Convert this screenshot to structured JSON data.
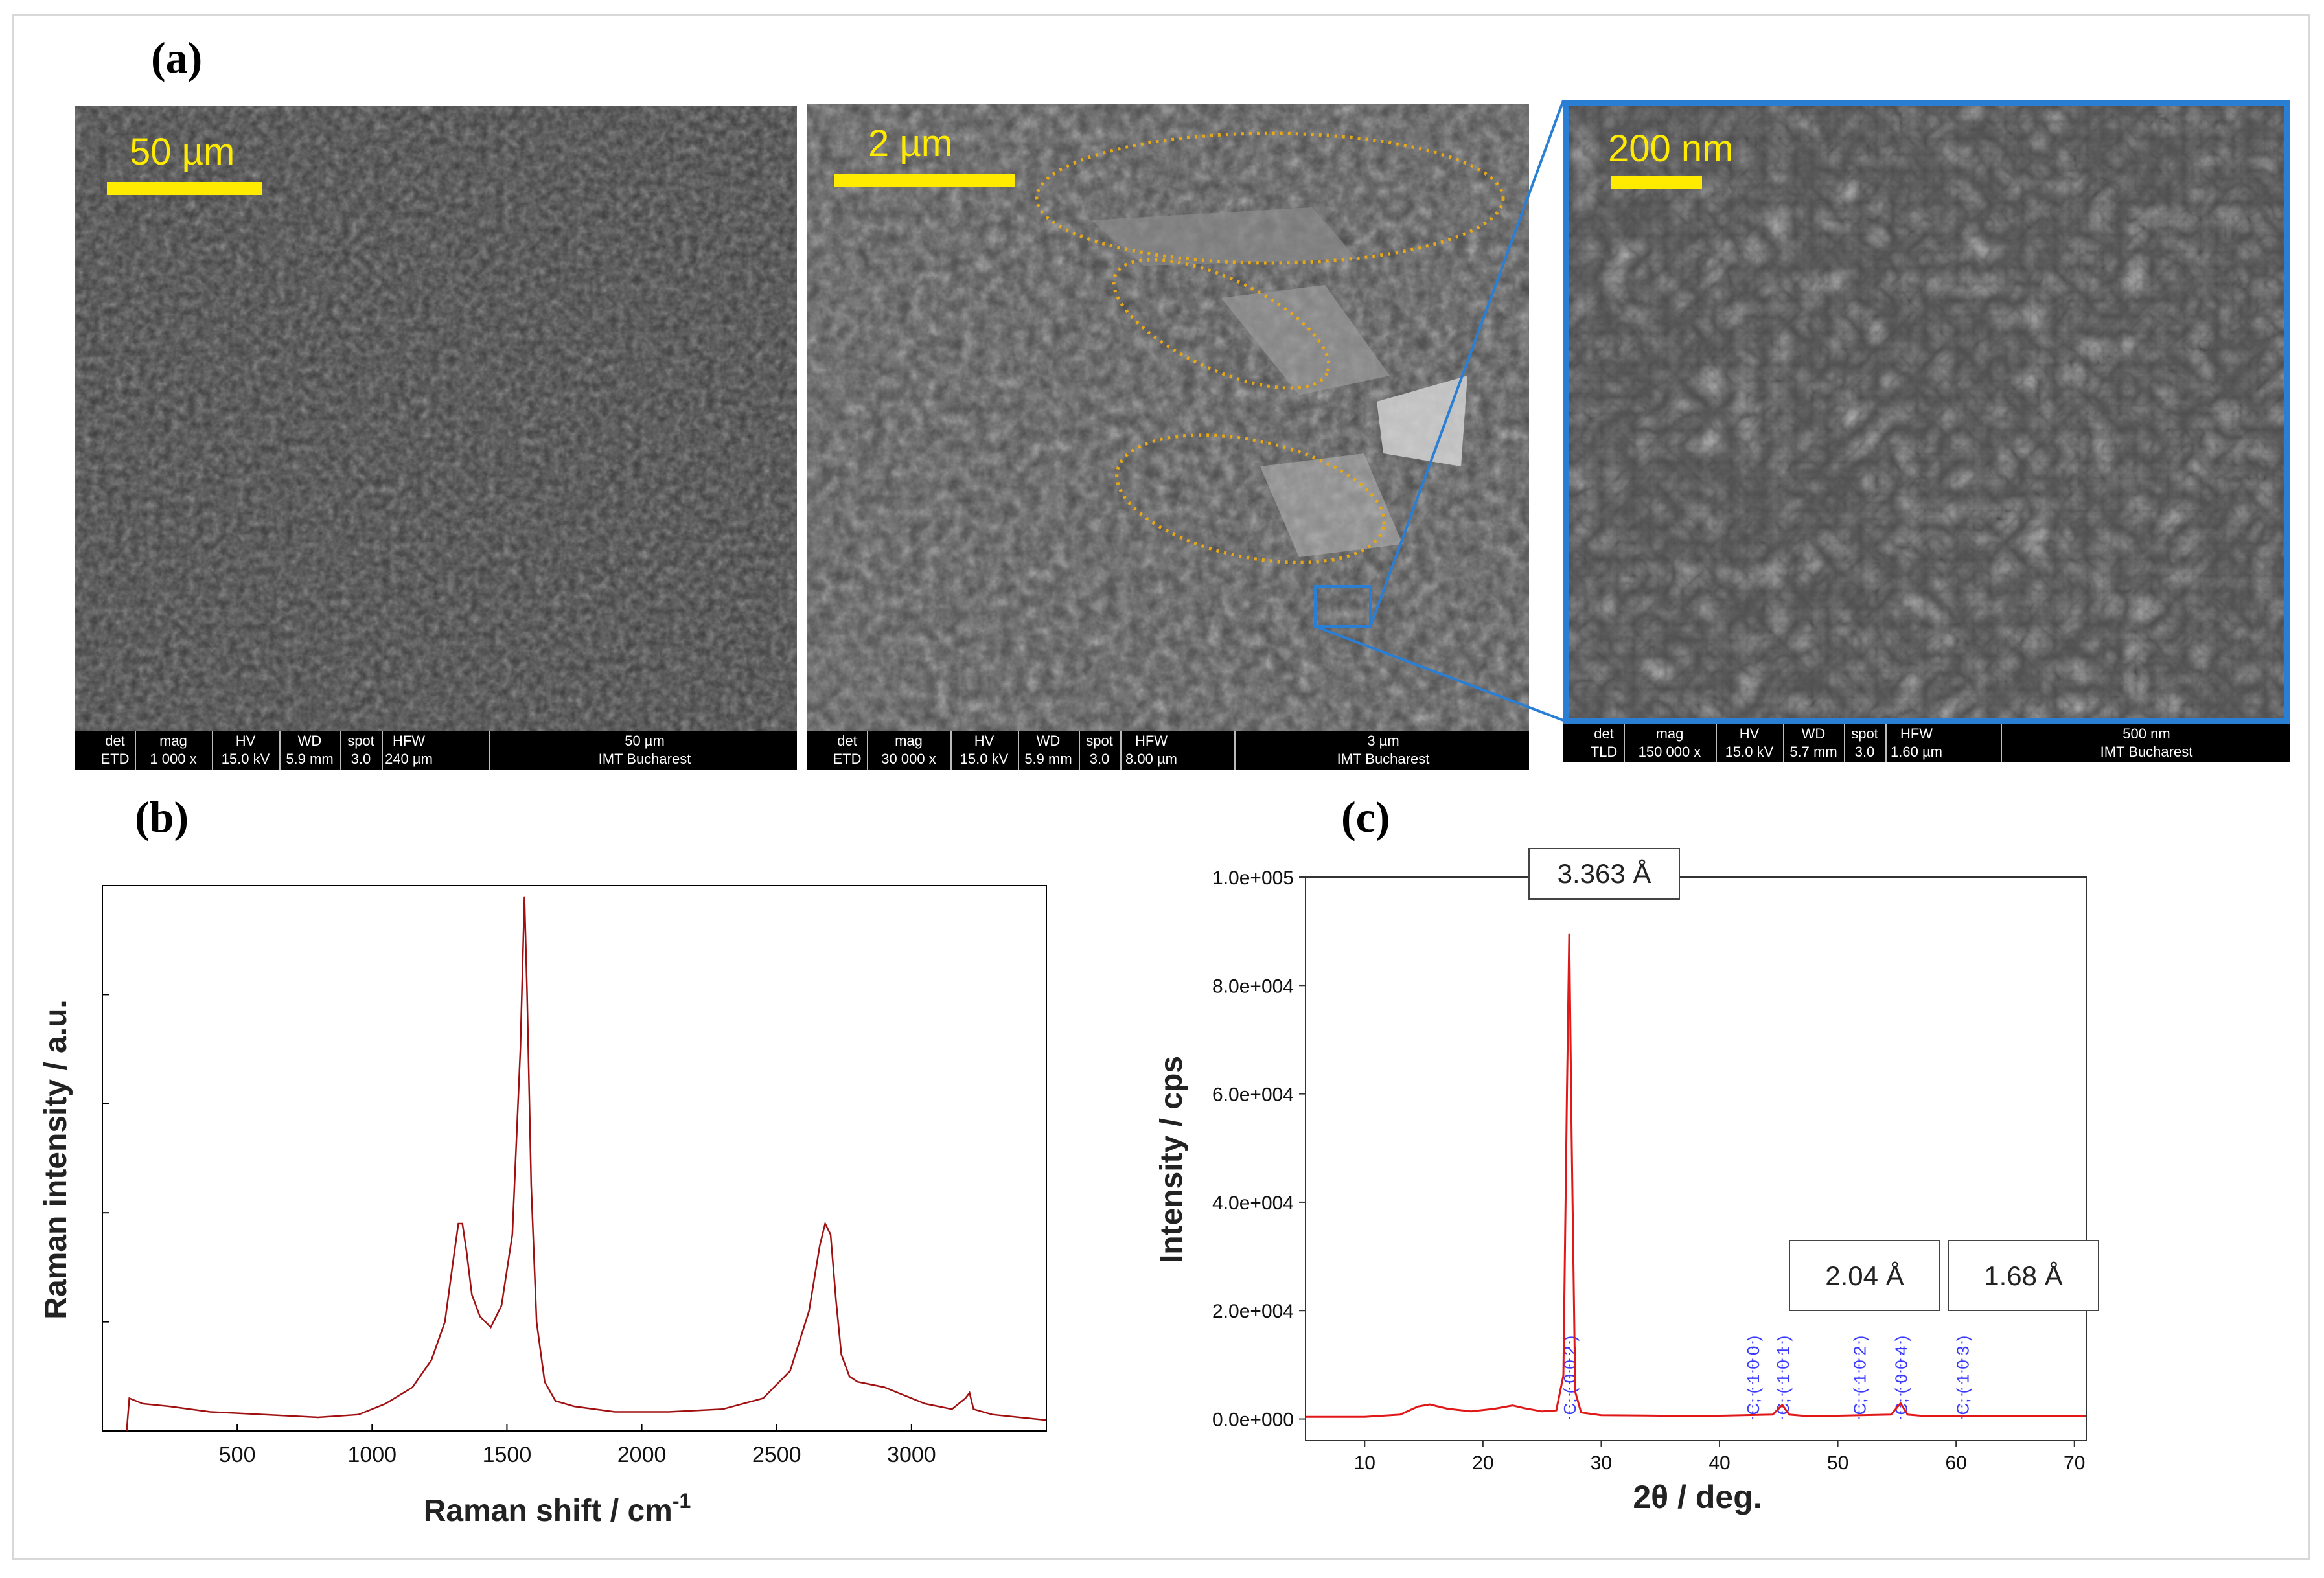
{
  "figure": {
    "panel_labels": {
      "a": "(a)",
      "b": "(b)",
      "c": "(c)"
    }
  },
  "sem_images": [
    {
      "scale_label": "50 µm",
      "info": {
        "det_header": "det",
        "det": "ETD",
        "mag_header": "mag",
        "mag": "1 000 x",
        "hv_header": "HV",
        "hv": "15.0 kV",
        "wd_header": "WD",
        "wd": "5.9 mm",
        "spot_header": "spot",
        "spot": "3.0",
        "hfw_header": "HFW",
        "hfw": "240 µm",
        "bar_label": "50 µm",
        "institution": "IMT Bucharest"
      }
    },
    {
      "scale_label": "2 µm",
      "info": {
        "det_header": "det",
        "det": "ETD",
        "mag_header": "mag",
        "mag": "30 000 x",
        "hv_header": "HV",
        "hv": "15.0 kV",
        "wd_header": "WD",
        "wd": "5.9 mm",
        "spot_header": "spot",
        "spot": "3.0",
        "hfw_header": "HFW",
        "hfw": "8.00 µm",
        "bar_label": "3 µm",
        "institution": "IMT Bucharest"
      }
    },
    {
      "scale_label": "200 nm",
      "info": {
        "det_header": "det",
        "det": "TLD",
        "mag_header": "mag",
        "mag": "150 000 x",
        "hv_header": "HV",
        "hv": "15.0 kV",
        "wd_header": "WD",
        "wd": "5.7 mm",
        "spot_header": "spot",
        "spot": "3.0",
        "hfw_header": "HFW",
        "hfw": "1.60 µm",
        "bar_label": "500 nm",
        "institution": "IMT Bucharest"
      }
    }
  ],
  "colors": {
    "raman_line": "#a01010",
    "xrd_line": "#e01818",
    "peak_labels": "#3a3aff",
    "scale_bar": "#ffeb00",
    "highlight_ellipse": "#e6a817",
    "zoom_box": "#2a7fd4"
  },
  "chart_data": [
    {
      "type": "line",
      "title": "",
      "xlabel": "Raman shift / cm",
      "xlabel_sup": "-1",
      "ylabel": "Raman intensity / a.u.",
      "xlim": [
        0,
        3500
      ],
      "ylim": [
        0,
        100
      ],
      "xticks": [
        500,
        1000,
        1500,
        2000,
        2500,
        3000
      ],
      "xtick_labels": [
        "500",
        "1000",
        "1500",
        "2000",
        "2500",
        "3000"
      ],
      "y_tick_labels_shown": false,
      "series": [
        {
          "x": [
            90,
            100,
            150,
            250,
            400,
            600,
            800,
            950,
            1050,
            1150,
            1220,
            1270,
            1300,
            1320,
            1335,
            1350,
            1370,
            1400,
            1440,
            1480,
            1520,
            1550,
            1565,
            1575,
            1590,
            1610,
            1640,
            1680,
            1750,
            1900,
            2100,
            2300,
            2450,
            2550,
            2620,
            2660,
            2680,
            2700,
            2720,
            2740,
            2770,
            2800,
            2850,
            2900,
            2950,
            3050,
            3150,
            3200,
            3215,
            3230,
            3300,
            3400,
            3500
          ],
          "y": [
            0,
            6,
            5,
            4.5,
            3.5,
            3,
            2.5,
            3,
            5,
            8,
            13,
            20,
            31,
            38,
            38,
            33,
            25,
            21,
            19,
            23,
            36,
            70,
            98,
            80,
            45,
            20,
            9,
            5.5,
            4.5,
            3.5,
            3.5,
            4,
            6,
            11,
            22,
            34,
            38,
            36,
            24,
            14,
            10,
            9,
            8.5,
            8,
            7,
            5,
            4,
            6,
            7,
            4,
            3,
            2.5,
            2
          ]
        }
      ]
    },
    {
      "type": "line",
      "title": "",
      "xlabel": "2θ / deg.",
      "ylabel": "Intensity / cps",
      "xlim": [
        5,
        71
      ],
      "ylim": [
        -4000,
        100000
      ],
      "xticks": [
        10,
        20,
        30,
        40,
        50,
        60,
        70
      ],
      "xtick_labels": [
        "10",
        "20",
        "30",
        "40",
        "50",
        "60",
        "70"
      ],
      "yticks": [
        0,
        20000,
        40000,
        60000,
        80000,
        100000
      ],
      "ytick_labels": [
        "0.0e+000",
        "2.0e+004",
        "4.0e+004",
        "6.0e+004",
        "8.0e+004",
        "1.0e+005"
      ],
      "series": [
        {
          "x": [
            5,
            10,
            13,
            14.5,
            15.5,
            17,
            19,
            21,
            22.5,
            23.5,
            25,
            26.2,
            26.8,
            27.1,
            27.3,
            27.5,
            27.8,
            28.3,
            30,
            35,
            40,
            44.5,
            45.3,
            45.9,
            47,
            50,
            54.5,
            55.3,
            55.9,
            57,
            60,
            65,
            71
          ],
          "y": [
            400,
            400,
            800,
            2300,
            2700,
            1900,
            1400,
            1900,
            2500,
            2000,
            1400,
            1600,
            8000,
            60000,
            89500,
            52000,
            5000,
            1200,
            700,
            600,
            600,
            800,
            2600,
            800,
            600,
            600,
            800,
            2900,
            800,
            600,
            600,
            600,
            600
          ]
        }
      ],
      "peak_markers": [
        {
          "x": 27.3,
          "label": "C, ( 0 0 2 )"
        },
        {
          "x": 42.8,
          "label": "C, ( 1 0 0 )"
        },
        {
          "x": 45.3,
          "label": "C, ( 1 0 1 )"
        },
        {
          "x": 51.8,
          "label": "C, ( 1 0 2 )"
        },
        {
          "x": 55.3,
          "label": "C, ( 0 0 4 )"
        },
        {
          "x": 60.5,
          "label": "C, ( 1 0 3 )"
        }
      ],
      "annotations": [
        "3.363  Å",
        "2.04 Å",
        "1.68 Å"
      ]
    }
  ]
}
